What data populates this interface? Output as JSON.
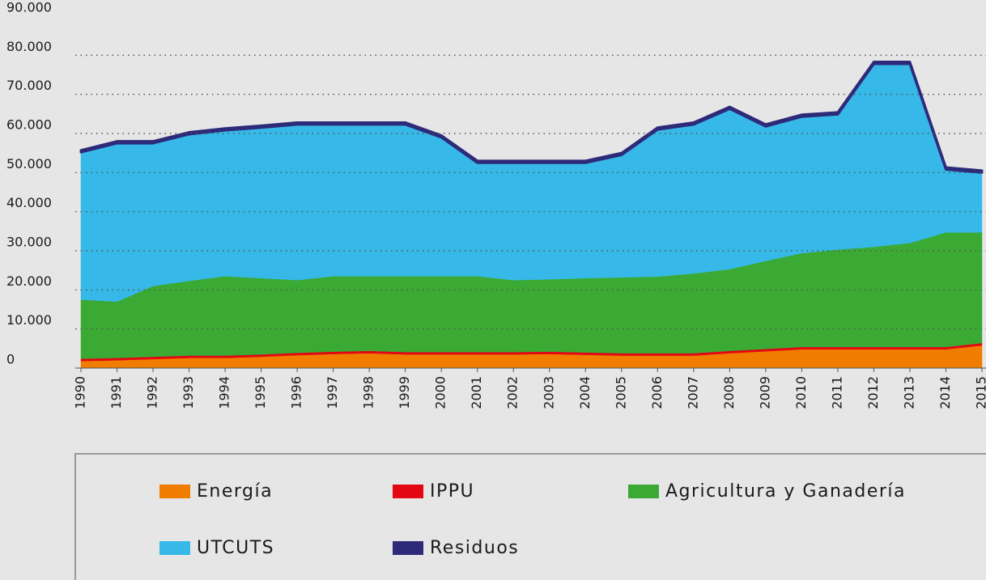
{
  "chart_data": {
    "type": "stacked_area",
    "categories": [
      "1990",
      "1991",
      "1992",
      "1993",
      "1994",
      "1995",
      "1996",
      "1997",
      "1998",
      "1999",
      "2000",
      "2001",
      "2002",
      "2003",
      "2004",
      "2005",
      "2006",
      "2007",
      "2008",
      "2009",
      "2010",
      "2011",
      "2012",
      "2013",
      "2014",
      "2015"
    ],
    "series": [
      {
        "name": "Energía",
        "color": "#f07d00",
        "values": [
          1800,
          2000,
          2300,
          2600,
          2600,
          2900,
          3300,
          3600,
          3800,
          3500,
          3500,
          3500,
          3500,
          3600,
          3400,
          3200,
          3200,
          3200,
          3800,
          4300,
          4800,
          4800,
          4800,
          4800,
          4800,
          5800
        ]
      },
      {
        "name": "IPPU",
        "color": "#e30613",
        "values": [
          600,
          600,
          600,
          600,
          600,
          600,
          600,
          600,
          600,
          600,
          600,
          600,
          600,
          600,
          600,
          600,
          600,
          600,
          600,
          600,
          600,
          600,
          600,
          600,
          600,
          600
        ]
      },
      {
        "name": "Agricultura y Ganadería",
        "color": "#3aaa35",
        "values": [
          15100,
          14400,
          18100,
          19100,
          20300,
          19500,
          18600,
          19300,
          19100,
          19400,
          19400,
          19400,
          18400,
          18500,
          19000,
          19400,
          19600,
          20400,
          20900,
          22500,
          24000,
          24900,
          25600,
          26600,
          29300,
          28300
        ]
      },
      {
        "name": "UTCUTS",
        "color": "#36b9e8",
        "values": [
          37700,
          40500,
          36500,
          37500,
          37300,
          38500,
          39800,
          38800,
          38800,
          38800,
          35500,
          29000,
          30000,
          29800,
          29500,
          31300,
          37600,
          38100,
          41000,
          34400,
          34900,
          34600,
          46800,
          45800,
          16100,
          15300
        ]
      },
      {
        "name": "Residuos",
        "color": "#2e2a7a",
        "values": [
          500,
          500,
          500,
          500,
          500,
          500,
          500,
          500,
          500,
          500,
          500,
          500,
          500,
          500,
          500,
          500,
          500,
          500,
          500,
          500,
          500,
          500,
          500,
          500,
          500,
          500
        ]
      }
    ],
    "ylim": [
      0,
      90000
    ],
    "yticks": [
      0,
      {
        "value": 10000,
        "label": "10.000"
      },
      {
        "value": 20000,
        "label": "20.000"
      },
      {
        "value": 30000,
        "label": "30.000"
      },
      {
        "value": 40000,
        "label": "40.000"
      },
      {
        "value": 50000,
        "label": "50.000"
      },
      {
        "value": 60000,
        "label": "60.000"
      },
      {
        "value": 70000,
        "label": "70.000"
      },
      {
        "value": 80000,
        "label": "80.000"
      },
      {
        "value": 90000,
        "label": "90.000"
      }
    ],
    "grid": true
  }
}
